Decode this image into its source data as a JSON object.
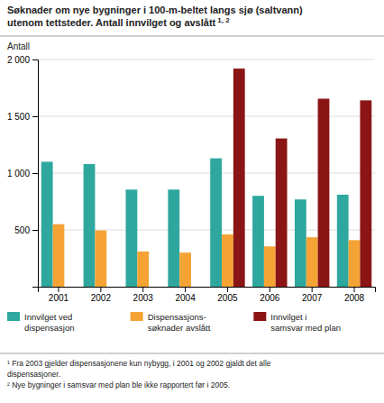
{
  "chart_data": {
    "type": "bar",
    "title": "Søknader om nye bygninger i 100-m-beltet langs sjø (saltvann)\nutenom tettsteder. Antall innvilget og avslått",
    "y_label": "Antall",
    "categories": [
      "2001",
      "2002",
      "2003",
      "2004",
      "2005",
      "2006",
      "2007",
      "2008"
    ],
    "series": [
      {
        "name": "Innvilget ved\ndispensasjon",
        "color": "#2ea89e",
        "values": [
          1100,
          1080,
          855,
          855,
          1130,
          800,
          768,
          810
        ]
      },
      {
        "name": "Dispensasjons-\nsøknader avslått",
        "color": "#f5a335",
        "values": [
          550,
          495,
          310,
          300,
          460,
          355,
          435,
          410
        ]
      },
      {
        "name": "Innvilget i\nsamsvar med plan",
        "color": "#8b1515",
        "values": [
          0,
          0,
          0,
          0,
          1920,
          1305,
          1655,
          1640
        ]
      }
    ],
    "ylim": [
      0,
      2000
    ],
    "yticks": [
      500,
      {
        "value": 1000,
        "label": "1 000"
      },
      {
        "value": 1500,
        "label": "1 500"
      },
      {
        "value": 2000,
        "label": "2 000"
      }
    ],
    "grid": true,
    "legend": "bottom",
    "annotations": [
      "1, 2",
      "¹ Fra 2003 gjelder dispensasjonene kun nybygg, i 2001 og 2002 gjaldt det alle",
      "dispensasjoner.",
      "² Nye bygninger i samsvar med plan ble ikke rapportert før i 2005."
    ]
  }
}
